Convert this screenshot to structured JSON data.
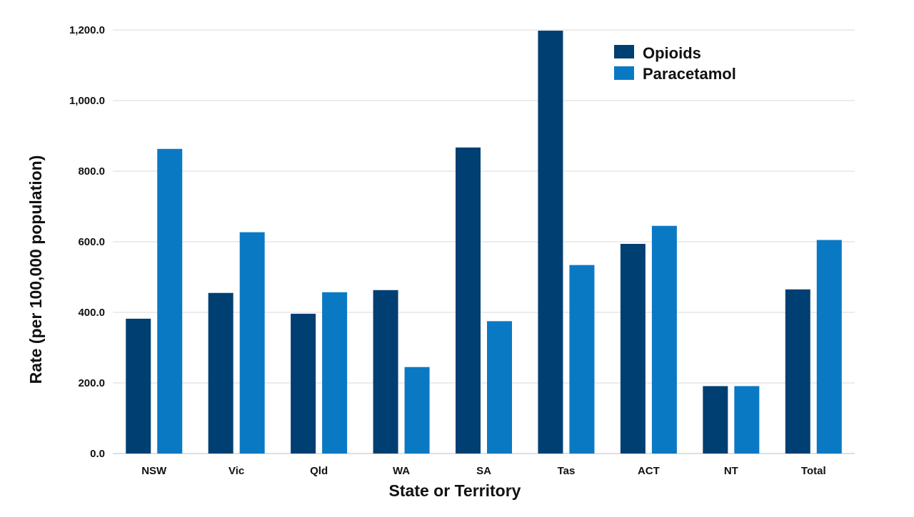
{
  "chart_data": {
    "type": "bar",
    "title": "",
    "xlabel": "State or Territory",
    "ylabel": "Rate (per 100,000 population)",
    "categories": [
      "NSW",
      "Vic",
      "Qld",
      "WA",
      "SA",
      "Tas",
      "ACT",
      "NT",
      "Total"
    ],
    "series": [
      {
        "name": "Opioids",
        "color": "#003f72",
        "values": [
          382,
          455,
          396,
          463,
          867,
          1198,
          594,
          191,
          465
        ]
      },
      {
        "name": "Paracetamol",
        "color": "#0a79c4",
        "values": [
          863,
          627,
          457,
          245,
          375,
          534,
          645,
          191,
          605
        ]
      }
    ],
    "ylim": [
      0,
      1200
    ],
    "yticks": [
      "0.0",
      "200.0",
      "400.0",
      "600.0",
      "800.0",
      "1,000.0",
      "1,200.0"
    ],
    "ytick_values": [
      0,
      200,
      400,
      600,
      800,
      1000,
      1200
    ],
    "grid": true,
    "legend_position": "top-right"
  }
}
